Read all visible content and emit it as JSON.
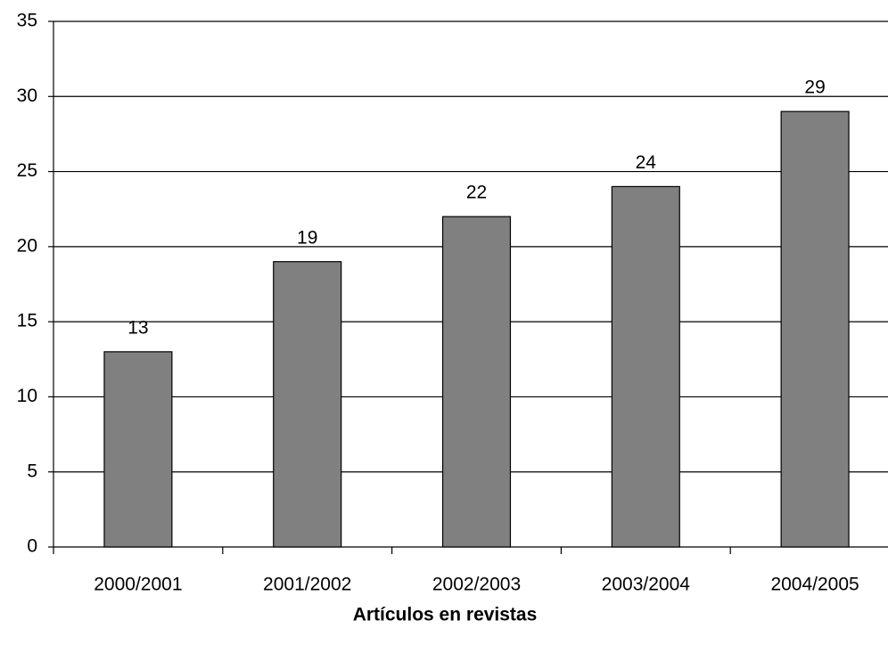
{
  "chart_data": {
    "type": "bar",
    "x_label": "Artículos en revistas",
    "categories": [
      "2000/2001",
      "2001/2002",
      "2002/2003",
      "2003/2004",
      "2004/2005"
    ],
    "values": [
      13,
      19,
      22,
      24,
      29
    ],
    "color": "#808080",
    "ylim": [
      0,
      35
    ],
    "yticks": [
      0,
      5,
      10,
      15,
      20,
      25,
      30,
      35
    ],
    "grid": true
  }
}
